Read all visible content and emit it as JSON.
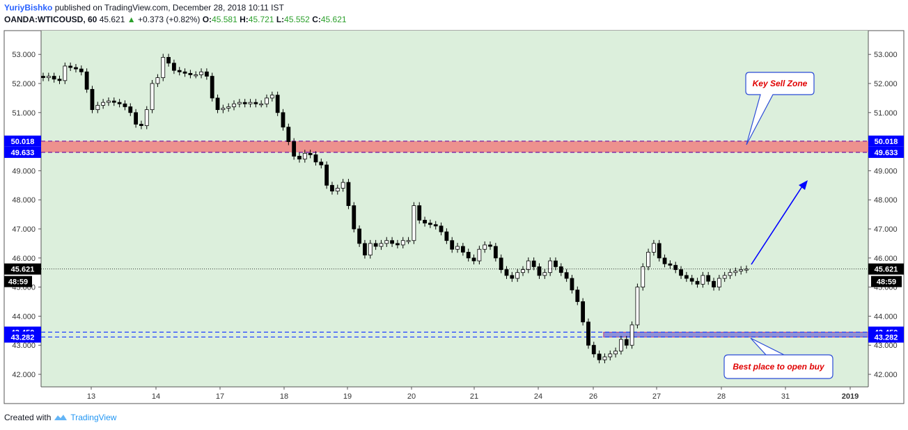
{
  "header": {
    "author": "YuriyBishko",
    "published_text": "published on TradingView.com, December 28, 2018 10:11 IST",
    "symbol": "OANDA:WTICOUSD, 60",
    "price": "45.621",
    "change_arrow": "▲",
    "change": "+0.373 (+0.82%)",
    "open_label": "O:",
    "open": "45.581",
    "high_label": "H:",
    "high": "45.721",
    "low_label": "L:",
    "low": "45.552",
    "close_label": "C:",
    "close": "45.621"
  },
  "footer": {
    "created_with": "Created with",
    "brand": "TradingView"
  },
  "colors": {
    "plot_bg": "#dcefdc",
    "sell_zone": "#f08080",
    "buy_zone": "#7b7bd6",
    "blue_tag": "#0000ff",
    "black_tag": "#000000",
    "arrow": "#0000ff",
    "callout_text": "#e00000"
  },
  "chart_data": {
    "type": "candlestick",
    "x_tick_labels": [
      "13",
      "14",
      "17",
      "18",
      "19",
      "20",
      "21",
      "24",
      "26",
      "27",
      "28",
      "31",
      "2019"
    ],
    "y_tick_labels": [
      "42.000",
      "43.000",
      "44.000",
      "45.000",
      "46.000",
      "47.000",
      "48.000",
      "49.000",
      "50.000",
      "51.000",
      "52.000",
      "53.000"
    ],
    "ylim": [
      41.6,
      53.4
    ],
    "grid": false,
    "close_series": [
      52.2,
      52.25,
      52.15,
      52.1,
      52.6,
      52.55,
      52.5,
      52.4,
      51.8,
      51.1,
      51.25,
      51.35,
      51.4,
      51.35,
      51.3,
      51.2,
      51.0,
      50.6,
      50.55,
      51.1,
      52.0,
      52.2,
      52.9,
      52.7,
      52.45,
      52.4,
      52.35,
      52.3,
      52.3,
      52.4,
      52.25,
      51.5,
      51.1,
      51.15,
      51.2,
      51.3,
      51.35,
      51.3,
      51.35,
      51.3,
      51.3,
      51.5,
      51.6,
      51.0,
      50.5,
      50.0,
      49.5,
      49.4,
      49.6,
      49.55,
      49.3,
      49.2,
      48.5,
      48.3,
      48.4,
      48.6,
      47.8,
      47.0,
      46.5,
      46.1,
      46.5,
      46.4,
      46.5,
      46.6,
      46.5,
      46.45,
      46.6,
      46.6,
      47.8,
      47.3,
      47.2,
      47.15,
      47.1,
      46.9,
      46.6,
      46.3,
      46.4,
      46.2,
      46.0,
      45.9,
      46.3,
      46.45,
      46.4,
      46.0,
      45.6,
      45.4,
      45.3,
      45.5,
      45.6,
      45.9,
      45.7,
      45.4,
      45.5,
      45.9,
      45.7,
      45.5,
      45.3,
      44.9,
      44.5,
      43.8,
      43.0,
      42.7,
      42.5,
      42.6,
      42.7,
      42.8,
      43.2,
      43.0,
      43.7,
      45.0,
      45.7,
      46.2,
      46.5,
      46.0,
      45.8,
      45.75,
      45.6,
      45.4,
      45.3,
      45.2,
      45.1,
      45.4,
      45.2,
      45.0,
      45.3,
      45.4,
      45.5,
      45.55,
      45.6,
      45.62
    ],
    "current_price": 45.621,
    "current_price_label": "45.621",
    "countdown_label": "48:59",
    "levels": [
      {
        "value": 50.018,
        "label": "50.018",
        "color": "#0000ff"
      },
      {
        "value": 49.633,
        "label": "49.633",
        "color": "#0000ff"
      },
      {
        "value": 43.45,
        "label": "43.450",
        "color": "#0000ff"
      },
      {
        "value": 43.282,
        "label": "43.282",
        "color": "#0000ff"
      }
    ],
    "zones": [
      {
        "from": 49.633,
        "to": 50.018,
        "color": "#f08080",
        "start_fraction": 0.0
      },
      {
        "from": 43.282,
        "to": 43.45,
        "color": "#7b7bd6",
        "start_fraction": 0.68
      }
    ],
    "annotations": [
      {
        "text": "Key Sell Zone"
      },
      {
        "text": "Best place to open buy"
      }
    ]
  }
}
